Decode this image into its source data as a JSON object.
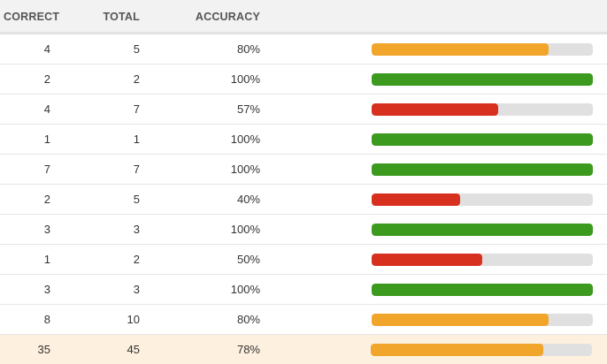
{
  "header": {
    "correct": "CORRECT",
    "total": "TOTAL",
    "accuracy": "ACCURACY"
  },
  "colors": {
    "high": "#3c9a1f",
    "mid": "#f1a52a",
    "low": "#d8301f"
  },
  "rows": [
    {
      "correct": "4",
      "total": "5",
      "accuracy": "80%",
      "fraction": 0.8,
      "level": "mid"
    },
    {
      "correct": "2",
      "total": "2",
      "accuracy": "100%",
      "fraction": 1.0,
      "level": "high"
    },
    {
      "correct": "4",
      "total": "7",
      "accuracy": "57%",
      "fraction": 0.57,
      "level": "low"
    },
    {
      "correct": "1",
      "total": "1",
      "accuracy": "100%",
      "fraction": 1.0,
      "level": "high"
    },
    {
      "correct": "7",
      "total": "7",
      "accuracy": "100%",
      "fraction": 1.0,
      "level": "high"
    },
    {
      "correct": "2",
      "total": "5",
      "accuracy": "40%",
      "fraction": 0.4,
      "level": "low"
    },
    {
      "correct": "3",
      "total": "3",
      "accuracy": "100%",
      "fraction": 1.0,
      "level": "high"
    },
    {
      "correct": "1",
      "total": "2",
      "accuracy": "50%",
      "fraction": 0.5,
      "level": "low"
    },
    {
      "correct": "3",
      "total": "3",
      "accuracy": "100%",
      "fraction": 1.0,
      "level": "high"
    },
    {
      "correct": "8",
      "total": "10",
      "accuracy": "80%",
      "fraction": 0.8,
      "level": "mid"
    }
  ],
  "totals": {
    "correct": "35",
    "total": "45",
    "accuracy": "78%",
    "fraction": 0.78,
    "level": "mid"
  }
}
